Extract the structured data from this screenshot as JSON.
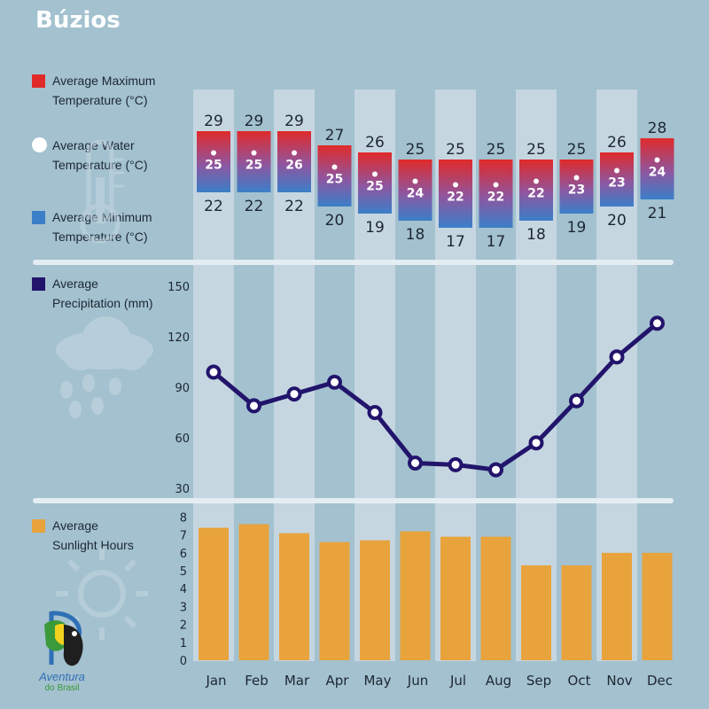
{
  "title": "Búzios",
  "legend": {
    "max_temp": "Average Maximum\nTemperature (°C)",
    "water_temp": "Average Water\nTemperature (°C)",
    "min_temp": "Average Minimum\nTemperature (°C)",
    "precipitation": "Average\nPrecipitation (mm)",
    "sunlight": "Average\nSunlight Hours"
  },
  "brand": {
    "name": "Aventura",
    "sub": "do Brasil"
  },
  "colors": {
    "background": "#a3c1cf",
    "column_band": "#c5d6e1",
    "max_temp": "#e02a2a",
    "min_temp": "#3a7fc8",
    "water_dot": "#ffffff",
    "precip_line": "#22146b",
    "sunlight_bar": "#e8a33c",
    "divider": "#e4edf2",
    "text": "#1d2733"
  },
  "chart_data": [
    {
      "type": "table",
      "name": "temperature",
      "categories": [
        "Jan",
        "Feb",
        "Mar",
        "Apr",
        "May",
        "Jun",
        "Jul",
        "Aug",
        "Sep",
        "Oct",
        "Nov",
        "Dec"
      ],
      "series": [
        {
          "name": "Average Maximum Temperature (°C)",
          "values": [
            29,
            29,
            29,
            27,
            26,
            25,
            25,
            25,
            25,
            25,
            26,
            28
          ]
        },
        {
          "name": "Average Water Temperature (°C)",
          "values": [
            25,
            25,
            26,
            25,
            25,
            24,
            22,
            22,
            22,
            23,
            23,
            24
          ]
        },
        {
          "name": "Average Minimum Temperature (°C)",
          "values": [
            22,
            22,
            22,
            20,
            19,
            18,
            17,
            17,
            18,
            19,
            20,
            21
          ]
        }
      ]
    },
    {
      "type": "line",
      "name": "precipitation",
      "categories": [
        "Jan",
        "Feb",
        "Mar",
        "Apr",
        "May",
        "Jun",
        "Jul",
        "Aug",
        "Sep",
        "Oct",
        "Nov",
        "Dec"
      ],
      "series": [
        {
          "name": "Average Precipitation (mm)",
          "values": [
            99,
            79,
            86,
            93,
            75,
            45,
            44,
            41,
            57,
            82,
            108,
            128
          ]
        }
      ],
      "yticks": [
        30,
        60,
        90,
        120,
        150
      ],
      "ylim": [
        30,
        150
      ]
    },
    {
      "type": "bar",
      "name": "sunlight",
      "categories": [
        "Jan",
        "Feb",
        "Mar",
        "Apr",
        "May",
        "Jun",
        "Jul",
        "Aug",
        "Sep",
        "Oct",
        "Nov",
        "Dec"
      ],
      "series": [
        {
          "name": "Average Sunlight Hours",
          "values": [
            7.4,
            7.6,
            7.1,
            6.6,
            6.7,
            7.2,
            6.9,
            6.9,
            5.3,
            5.3,
            6.0,
            6.0
          ]
        }
      ],
      "yticks": [
        0,
        1,
        2,
        3,
        4,
        5,
        6,
        7,
        8
      ],
      "ylim": [
        0,
        8
      ]
    }
  ]
}
